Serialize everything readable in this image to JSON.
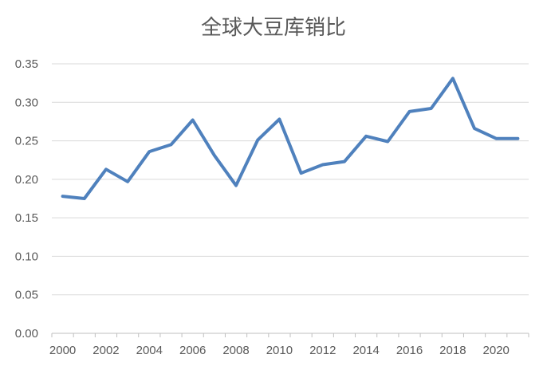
{
  "chart_data": {
    "type": "line",
    "title": "全球大豆库销比",
    "xlabel": "",
    "ylabel": "",
    "x": [
      2000,
      2001,
      2002,
      2003,
      2004,
      2005,
      2006,
      2007,
      2008,
      2009,
      2010,
      2011,
      2012,
      2013,
      2014,
      2015,
      2016,
      2017,
      2018,
      2019,
      2020,
      2021
    ],
    "series": [
      {
        "values": [
          0.178,
          0.175,
          0.213,
          0.197,
          0.236,
          0.245,
          0.277,
          0.231,
          0.192,
          0.251,
          0.278,
          0.208,
          0.219,
          0.223,
          0.256,
          0.249,
          0.288,
          0.292,
          0.331,
          0.266,
          0.253,
          0.253
        ],
        "color": "#4f81bd"
      }
    ],
    "ylim": [
      0,
      0.35
    ],
    "yticks": [
      "0.00",
      "0.05",
      "0.10",
      "0.15",
      "0.20",
      "0.25",
      "0.30",
      "0.35"
    ],
    "xtick_labels": [
      "2000",
      "2002",
      "2004",
      "2006",
      "2008",
      "2010",
      "2012",
      "2014",
      "2016",
      "2018",
      "2020"
    ],
    "grid": true,
    "legend": "none"
  }
}
